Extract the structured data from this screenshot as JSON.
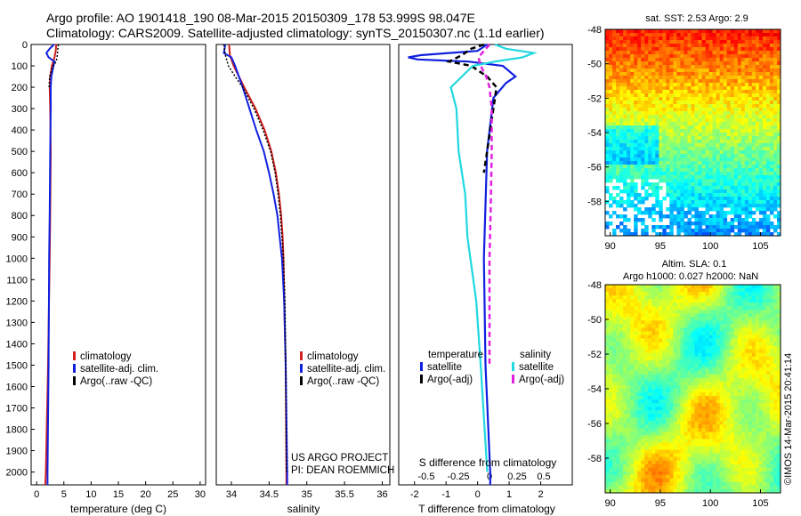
{
  "header": {
    "line1": "Argo profile: AO 1901418_190 08-Mar-2015 20150309_178 53.999S 98.047E",
    "line2": "Climatology: CARS2009. Satellite-adjusted climatology: synTS_20150307.nc (1.1d earlier)"
  },
  "colors": {
    "climatology": "#d02020",
    "satellite": "#1020e0",
    "argo": "#000000",
    "sal_satellite": "#20d8e0",
    "sal_argo": "#e020e0"
  },
  "chart_data": [
    {
      "type": "line",
      "id": "temperature",
      "xlabel": "temperature (deg C)",
      "ylabel": "",
      "xlim": [
        -1,
        31
      ],
      "ylim": [
        0,
        2060
      ],
      "y_inverted": true,
      "xticks": [
        "0",
        "5",
        "10",
        "15",
        "20",
        "25",
        "30"
      ],
      "yticks": [
        "0",
        "100",
        "200",
        "300",
        "400",
        "500",
        "600",
        "700",
        "800",
        "900",
        "1000",
        "1100",
        "1200",
        "1300",
        "1400",
        "1500",
        "1600",
        "1700",
        "1800",
        "1900",
        "2000"
      ],
      "legend": [
        "climatology",
        "satellite-adj. clim.",
        "Argo(..raw -QC)"
      ],
      "series": [
        {
          "name": "climatology",
          "depth": [
            0,
            30,
            60,
            100,
            150,
            200,
            300,
            500,
            800,
            1000,
            1500,
            2000,
            2060
          ],
          "values": [
            3.6,
            3.5,
            3.3,
            2.8,
            2.5,
            2.4,
            2.5,
            2.6,
            2.5,
            2.4,
            2.1,
            1.7,
            1.6
          ]
        },
        {
          "name": "satellite-adj. clim.",
          "depth": [
            0,
            20,
            40,
            60,
            80,
            100,
            150,
            200,
            300,
            500,
            800,
            1000,
            1500,
            2000,
            2060
          ],
          "values": [
            3.2,
            2.4,
            1.8,
            2.2,
            3.3,
            3.1,
            2.7,
            2.6,
            2.6,
            2.5,
            2.4,
            2.3,
            2.2,
            2.0,
            2.0
          ]
        },
        {
          "name": "Argo(..raw -QC)",
          "depth": [
            0,
            20,
            50,
            80,
            100,
            150,
            200
          ],
          "values": [
            4.0,
            3.9,
            3.8,
            3.6,
            3.0,
            2.4,
            2.3
          ]
        }
      ]
    },
    {
      "type": "line",
      "id": "salinity",
      "xlabel": "salinity",
      "xlim": [
        33.8,
        36.1
      ],
      "ylim": [
        0,
        2060
      ],
      "y_inverted": true,
      "xticks": [
        "34",
        "34.5",
        "35",
        "35.5",
        "36"
      ],
      "legend": [
        "climatology",
        "satellite-adj. clim.",
        "Argo(..raw -QC)"
      ],
      "annotation": [
        "US ARGO PROJECT",
        "PI: DEAN ROEMMICH"
      ],
      "series": [
        {
          "name": "climatology",
          "depth": [
            0,
            50,
            100,
            200,
            300,
            400,
            500,
            600,
            700,
            800,
            900,
            1000,
            1200,
            1500,
            2000,
            2060
          ],
          "values": [
            33.97,
            33.98,
            34.03,
            34.17,
            34.32,
            34.44,
            34.53,
            34.59,
            34.63,
            34.66,
            34.68,
            34.69,
            34.7,
            34.72,
            34.73,
            34.73
          ]
        },
        {
          "name": "satellite-adj. clim.",
          "depth": [
            0,
            40,
            60,
            100,
            150,
            200,
            300,
            400,
            500,
            600,
            700,
            800,
            900,
            1000,
            1200,
            1500,
            2000,
            2060
          ],
          "values": [
            33.92,
            33.9,
            34.0,
            34.05,
            34.1,
            34.15,
            34.24,
            34.33,
            34.43,
            34.5,
            34.56,
            34.61,
            34.64,
            34.67,
            34.7,
            34.72,
            34.74,
            34.74
          ]
        },
        {
          "name": "Argo(..raw -QC)",
          "depth": [
            0,
            50,
            100,
            150,
            200,
            300,
            400,
            500,
            600,
            700,
            800,
            900,
            1000,
            1200,
            1500,
            2000
          ],
          "values": [
            33.9,
            33.92,
            33.96,
            34.05,
            34.15,
            34.3,
            34.42,
            34.52,
            34.58,
            34.62,
            34.65,
            34.67,
            34.69,
            34.71,
            34.72,
            34.73
          ]
        }
      ]
    },
    {
      "type": "line",
      "id": "difference",
      "xlabel": "T difference from climatology",
      "top_label": "S difference from climatology",
      "xlim": [
        -2.5,
        3
      ],
      "ylim": [
        0,
        2060
      ],
      "y_inverted": true,
      "xticks": [
        "-2",
        "-1",
        "0",
        "1",
        "2"
      ],
      "top_ticks": [
        "-0.5",
        "-0.25",
        "0",
        "0.25",
        "0.5"
      ],
      "legend_titles": [
        "temperature",
        "salinity"
      ],
      "legend": [
        "satellite",
        "Argo(-adj)",
        "satellite",
        "Argo(-adj)"
      ],
      "series": [
        {
          "name": "temperature satellite",
          "depth": [
            0,
            30,
            50,
            60,
            70,
            80,
            100,
            150,
            180,
            250,
            500,
            1000,
            1500,
            2000,
            2060
          ],
          "values": [
            0.3,
            0.0,
            -1.8,
            -2.2,
            -1.9,
            -0.3,
            0.8,
            1.2,
            0.9,
            0.5,
            0.3,
            0.2,
            0.25,
            0.4,
            0.4
          ]
        },
        {
          "name": "temperature Argo(-adj)",
          "depth": [
            0,
            20,
            50,
            80,
            100,
            150,
            200,
            300,
            400,
            500,
            600
          ],
          "values": [
            0.2,
            -0.2,
            -0.5,
            -0.9,
            -0.2,
            0.3,
            0.6,
            0.5,
            0.4,
            0.3,
            0.2
          ]
        },
        {
          "name": "salinity satellite",
          "depth": [
            0,
            20,
            40,
            60,
            80,
            100,
            150,
            200,
            300,
            500,
            700,
            900,
            1200,
            1500,
            2000
          ],
          "values": [
            0.05,
            0.15,
            0.4,
            0.3,
            0.05,
            -0.15,
            -0.25,
            -0.35,
            -0.3,
            -0.28,
            -0.22,
            -0.2,
            -0.12,
            -0.08,
            -0.02
          ]
        },
        {
          "name": "salinity Argo(-adj)",
          "depth": [
            0,
            30,
            60,
            100,
            150,
            200,
            300,
            500,
            800,
            1000,
            1500
          ],
          "values": [
            0.0,
            -0.05,
            -0.1,
            -0.08,
            -0.03,
            0.0,
            0.02,
            0.02,
            0.01,
            0.0,
            0.0
          ]
        }
      ]
    },
    {
      "type": "heatmap",
      "id": "sst-map",
      "title": "sat. SST: 2.53 Argo: 2.9",
      "xlim": [
        89.5,
        107
      ],
      "ylim": [
        -60,
        -48
      ],
      "xticks": [
        "90",
        "95",
        "100",
        "105"
      ],
      "yticks": [
        "-48",
        "-50",
        "-52",
        "-54",
        "-56",
        "-58"
      ]
    },
    {
      "type": "heatmap",
      "id": "sla-map",
      "title": "Altim. SLA: 0.1",
      "subtitle": "Argo h1000: 0.027 h2000: NaN",
      "xlim": [
        89.5,
        107
      ],
      "ylim": [
        -60,
        -48
      ],
      "xticks": [
        "90",
        "95",
        "100",
        "105"
      ],
      "yticks": [
        "-48",
        "-50",
        "-52",
        "-54",
        "-56",
        "-58"
      ]
    }
  ],
  "footer": {
    "stamp": "©IMOS 14-Mar-2015 20:41:14"
  }
}
